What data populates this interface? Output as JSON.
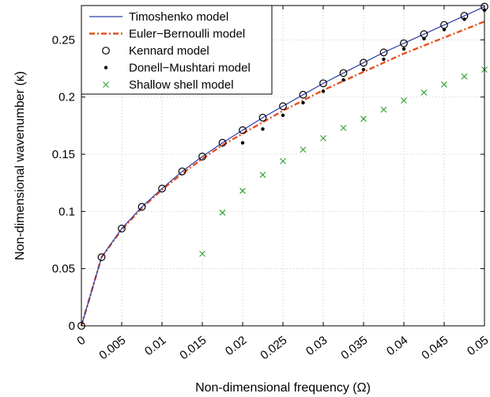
{
  "chart_data": {
    "type": "line",
    "xlabel": "Non-dimensional frequency (Ω)",
    "ylabel": "Non-dimensional wavenumber (κ)",
    "xlim": [
      0,
      0.05
    ],
    "ylim": [
      0,
      0.28
    ],
    "grid": true,
    "legend_position": "top-left",
    "x_ticks": [
      0,
      0.005,
      0.01,
      0.015,
      0.02,
      0.025,
      0.03,
      0.035,
      0.04,
      0.045,
      0.05
    ],
    "x_tick_labels": [
      "0",
      "0.005",
      "0.01",
      "0.015",
      "0.02",
      "0.025",
      "0.03",
      "0.035",
      "0.04",
      "0.045",
      "0.05"
    ],
    "y_ticks": [
      0,
      0.05,
      0.1,
      0.15,
      0.2,
      0.25
    ],
    "y_tick_labels": [
      "0",
      "0.05",
      "0.1",
      "0.15",
      "0.2",
      "0.25"
    ],
    "series": [
      {
        "name": "Timoshenko model",
        "style": "solid-line",
        "color": "#2b3ea8",
        "x": [
          0,
          0.0025,
          0.005,
          0.0075,
          0.01,
          0.0125,
          0.015,
          0.0175,
          0.02,
          0.0225,
          0.025,
          0.0275,
          0.03,
          0.0325,
          0.035,
          0.0375,
          0.04,
          0.0425,
          0.045,
          0.0475,
          0.05
        ],
        "y": [
          0,
          0.06,
          0.085,
          0.104,
          0.12,
          0.135,
          0.148,
          0.16,
          0.171,
          0.182,
          0.192,
          0.202,
          0.212,
          0.221,
          0.23,
          0.239,
          0.247,
          0.255,
          0.263,
          0.271,
          0.279
        ]
      },
      {
        "name": "Euler−Bernoulli model",
        "style": "dash-dot-line",
        "color": "#e8501c",
        "x": [
          0,
          0.0025,
          0.005,
          0.0075,
          0.01,
          0.0125,
          0.015,
          0.0175,
          0.02,
          0.0225,
          0.025,
          0.0275,
          0.03,
          0.0325,
          0.035,
          0.0375,
          0.04,
          0.0425,
          0.045,
          0.0475,
          0.05
        ],
        "y": [
          0,
          0.06,
          0.084,
          0.103,
          0.119,
          0.133,
          0.146,
          0.158,
          0.168,
          0.178,
          0.188,
          0.197,
          0.206,
          0.214,
          0.222,
          0.23,
          0.238,
          0.245,
          0.252,
          0.259,
          0.266
        ]
      },
      {
        "name": "Kennard model",
        "style": "open-circle",
        "color": "#000000",
        "x": [
          0,
          0.0025,
          0.005,
          0.0075,
          0.01,
          0.0125,
          0.015,
          0.0175,
          0.02,
          0.0225,
          0.025,
          0.0275,
          0.03,
          0.0325,
          0.035,
          0.0375,
          0.04,
          0.0425,
          0.045,
          0.0475,
          0.05
        ],
        "y": [
          0,
          0.06,
          0.085,
          0.104,
          0.12,
          0.135,
          0.148,
          0.16,
          0.171,
          0.182,
          0.192,
          0.202,
          0.212,
          0.221,
          0.23,
          0.239,
          0.247,
          0.255,
          0.263,
          0.271,
          0.279
        ]
      },
      {
        "name": "Donell−Mushtari model",
        "style": "dot",
        "color": "#000000",
        "x": [
          0.02,
          0.0225,
          0.025,
          0.0275,
          0.03,
          0.0325,
          0.035,
          0.0375,
          0.04,
          0.0425,
          0.045,
          0.0475,
          0.05
        ],
        "y": [
          0.16,
          0.172,
          0.184,
          0.195,
          0.205,
          0.215,
          0.224,
          0.233,
          0.242,
          0.251,
          0.259,
          0.268,
          0.276
        ]
      },
      {
        "name": "Shallow shell model",
        "style": "x-marker",
        "color": "#2ca02c",
        "x": [
          0.015,
          0.0175,
          0.02,
          0.0225,
          0.025,
          0.0275,
          0.03,
          0.0325,
          0.035,
          0.0375,
          0.04,
          0.0425,
          0.045,
          0.0475,
          0.05
        ],
        "y": [
          0.063,
          0.099,
          0.118,
          0.132,
          0.144,
          0.154,
          0.164,
          0.173,
          0.181,
          0.189,
          0.197,
          0.204,
          0.211,
          0.218,
          0.224
        ]
      }
    ]
  }
}
